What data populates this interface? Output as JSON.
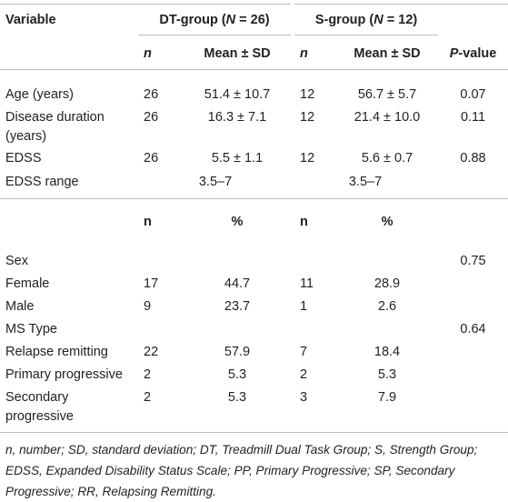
{
  "header": {
    "variable": "Variable",
    "groups": [
      {
        "pre": "DT-group (",
        "var": "N",
        "post": " = 26)"
      },
      {
        "pre": "S-group (",
        "var": "N",
        "post": " = 12)"
      }
    ],
    "pvalue": {
      "var": "P",
      "post": "-value"
    },
    "sub": [
      "n",
      "Mean ± SD",
      "n",
      "Mean ± SD"
    ]
  },
  "rows": [
    [
      "Age (years)",
      "26",
      "51.4 ± 10.7",
      "12",
      "56.7 ± 5.7",
      "0.07"
    ],
    [
      "Disease duration (years)",
      "26",
      "16.3 ± 7.1",
      "12",
      "21.4 ± 10.0",
      "0.11"
    ],
    [
      "EDSS",
      "26",
      "5.5 ± 1.1",
      "12",
      "5.6 ± 0.7",
      "0.88"
    ]
  ],
  "range_row": [
    "EDSS range",
    "3.5–7",
    "3.5–7"
  ],
  "header2": [
    "n",
    "%",
    "n",
    "%"
  ],
  "rows2": [
    [
      "Sex",
      null,
      null,
      null,
      null,
      "0.75"
    ],
    [
      "Female",
      "17",
      "44.7",
      "11",
      "28.9",
      null
    ],
    [
      "Male",
      "9",
      "23.7",
      "1",
      "2.6",
      null
    ],
    [
      "MS Type",
      null,
      null,
      null,
      null,
      "0.64"
    ],
    [
      "Relapse remitting",
      "22",
      "57.9",
      "7",
      "18.4",
      null
    ],
    [
      "Primary progressive",
      "2",
      "5.3",
      "2",
      "5.3",
      null
    ],
    [
      "Secondary progressive",
      "2",
      "5.3",
      "3",
      "7.9",
      null
    ]
  ],
  "footnote": "n, number; SD, standard deviation; DT, Treadmill Dual Task Group; S, Strength Group; EDSS, Expanded Disability Status Scale; PP, Primary Progressive; SP, Secondary Progressive; RR, Relapsing Remitting."
}
